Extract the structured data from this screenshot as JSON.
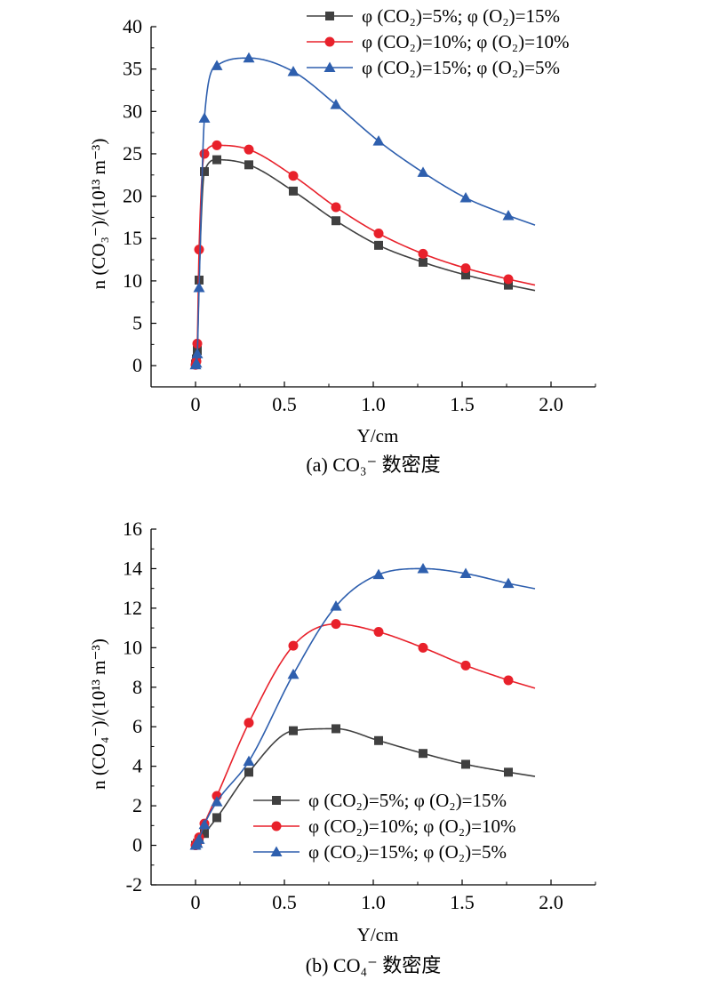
{
  "colors": {
    "black": "#404040",
    "red": "#e8212b",
    "blue": "#2e5fae"
  },
  "chart_data": [
    {
      "type": "line",
      "caption": "(a) CO₃⁻ 数密度",
      "xlabel": "Y/cm",
      "ylabel": "n (CO₃⁻)/(10¹³ m⁻³)",
      "xlim": [
        -0.25,
        2.25
      ],
      "ylim": [
        -2.5,
        40
      ],
      "xticks": [
        0,
        0.5,
        1.0,
        1.5,
        2.0
      ],
      "xtick_labels": [
        "0",
        "0.5",
        "1.0",
        "1.5",
        "2.0"
      ],
      "yticks": [
        0,
        5,
        10,
        15,
        20,
        25,
        30,
        35,
        40
      ],
      "ytick_labels": [
        "0",
        "5",
        "10",
        "15",
        "20",
        "25",
        "30",
        "35",
        "40"
      ],
      "legend_position": "top-right",
      "series": [
        {
          "name": "φ (CO₂)=5%; φ (O₂)=15%",
          "marker": "square",
          "color": "#404040",
          "x": [
            0,
            0.005,
            0.01,
            0.02,
            0.05,
            0.12,
            0.3,
            0.55,
            0.79,
            1.03,
            1.28,
            1.52,
            1.76
          ],
          "y": [
            0.2,
            0.8,
            1.8,
            10.1,
            22.9,
            24.3,
            23.7,
            20.6,
            17.1,
            14.2,
            12.2,
            10.7,
            9.5
          ]
        },
        {
          "name": "φ (CO₂)=10%; φ (O₂)=10%",
          "marker": "circle",
          "color": "#e8212b",
          "x": [
            0,
            0.005,
            0.01,
            0.02,
            0.05,
            0.12,
            0.3,
            0.55,
            0.79,
            1.03,
            1.28,
            1.52,
            1.76
          ],
          "y": [
            0.1,
            0.5,
            2.6,
            13.7,
            25.0,
            26.0,
            25.5,
            22.4,
            18.7,
            15.6,
            13.2,
            11.5,
            10.2
          ]
        },
        {
          "name": "φ (CO₂)=15%; φ (O₂)=5%",
          "marker": "triangle",
          "color": "#2e5fae",
          "x": [
            0,
            0.005,
            0.01,
            0.02,
            0.05,
            0.12,
            0.3,
            0.55,
            0.79,
            1.03,
            1.28,
            1.52,
            1.76
          ],
          "y": [
            0.1,
            0.3,
            1.4,
            9.2,
            29.2,
            35.4,
            36.3,
            34.7,
            30.8,
            26.5,
            22.8,
            19.8,
            17.7
          ]
        }
      ]
    },
    {
      "type": "line",
      "caption": "(b) CO₄⁻ 数密度",
      "xlabel": "Y/cm",
      "ylabel": "n (CO₄⁻)/(10¹³ m⁻³)",
      "xlim": [
        -0.25,
        2.25
      ],
      "ylim": [
        -2,
        16
      ],
      "xticks": [
        0,
        0.5,
        1.0,
        1.5,
        2.0
      ],
      "xtick_labels": [
        "0",
        "0.5",
        "1.0",
        "1.5",
        "2.0"
      ],
      "yticks": [
        -2,
        0,
        2,
        4,
        6,
        8,
        10,
        12,
        14,
        16
      ],
      "ytick_labels": [
        "-2",
        "0",
        "2",
        "4",
        "6",
        "8",
        "10",
        "12",
        "14",
        "16"
      ],
      "legend_position": "bottom-right",
      "series": [
        {
          "name": "φ (CO₂)=5%; φ (O₂)=15%",
          "marker": "square",
          "color": "#404040",
          "x": [
            0,
            0.01,
            0.02,
            0.05,
            0.12,
            0.3,
            0.55,
            0.79,
            1.03,
            1.28,
            1.52,
            1.76
          ],
          "y": [
            0,
            0.1,
            0.3,
            0.6,
            1.4,
            3.7,
            5.8,
            5.9,
            5.3,
            4.65,
            4.1,
            3.7
          ]
        },
        {
          "name": "φ (CO₂)=10%; φ (O₂)=10%",
          "marker": "circle",
          "color": "#e8212b",
          "x": [
            0,
            0.01,
            0.02,
            0.05,
            0.12,
            0.3,
            0.55,
            0.79,
            1.03,
            1.28,
            1.52,
            1.76
          ],
          "y": [
            0,
            0.15,
            0.4,
            1.1,
            2.5,
            6.2,
            10.1,
            11.2,
            10.8,
            10.0,
            9.1,
            8.35
          ]
        },
        {
          "name": "φ (CO₂)=15%; φ (O₂)=5%",
          "marker": "triangle",
          "color": "#2e5fae",
          "x": [
            0,
            0.01,
            0.02,
            0.05,
            0.12,
            0.3,
            0.55,
            0.79,
            1.03,
            1.28,
            1.52,
            1.76
          ],
          "y": [
            0,
            0.1,
            0.3,
            1.05,
            2.2,
            4.25,
            8.65,
            12.1,
            13.7,
            14.0,
            13.75,
            13.25
          ]
        }
      ]
    }
  ]
}
